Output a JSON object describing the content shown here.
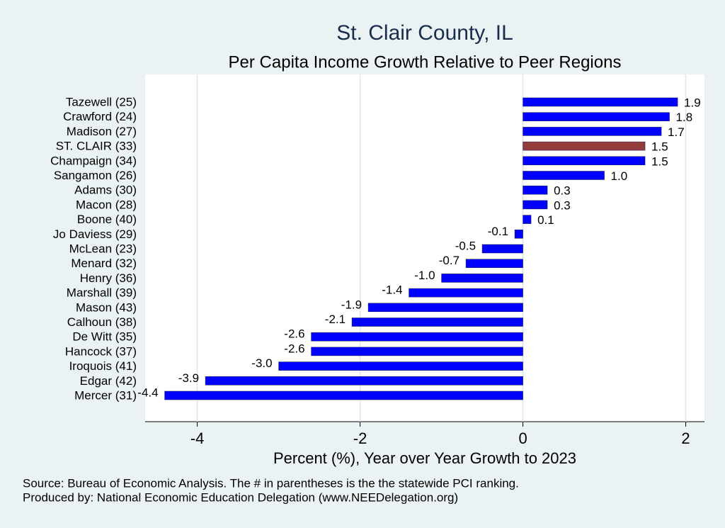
{
  "chart_data": {
    "type": "hbar",
    "title": "St. Clair County, IL",
    "subtitle": "Per Capita Income Growth Relative to Peer Regions",
    "x_label": "Percent (%), Year over Year Growth to 2023",
    "notes": [
      "Source: Bureau of Economic Analysis. The # in parentheses is the the statewide PCI ranking.",
      "Produced by: National Economic Education Delegation (www.NEEDelegation.org)"
    ],
    "categories": [
      "Tazewell (25)",
      "Crawford (24)",
      "Madison (27)",
      "ST. CLAIR (33)",
      "Champaign (34)",
      "Sangamon (26)",
      "Adams (30)",
      "Macon (28)",
      "Boone (40)",
      "Jo Daviess (29)",
      "McLean (23)",
      "Menard (32)",
      "Henry (36)",
      "Marshall (39)",
      "Mason (43)",
      "Calhoun (38)",
      "De Witt (35)",
      "Hancock (37)",
      "Iroquois (41)",
      "Edgar (42)",
      "Mercer (31)"
    ],
    "values": [
      1.9,
      1.8,
      1.7,
      1.5,
      1.5,
      1.0,
      0.3,
      0.3,
      0.1,
      -0.1,
      -0.5,
      -0.7,
      -1.0,
      -1.4,
      -1.9,
      -2.1,
      -2.6,
      -2.6,
      -3.0,
      -3.9,
      -4.4
    ],
    "value_labels": [
      "1.9",
      "1.8",
      "1.7",
      "1.5",
      "1.5",
      "1.0",
      "0.3",
      "0.3",
      "0.1",
      "-0.1",
      "-0.5",
      "-0.7",
      "-1.0",
      "-1.4",
      "-1.9",
      "-2.1",
      "-2.6",
      "-2.6",
      "-3.0",
      "-3.9",
      "-4.4"
    ],
    "colors": [
      "#0000ff",
      "#0000ff",
      "#0000ff",
      "#943c3c",
      "#0000ff",
      "#0000ff",
      "#0000ff",
      "#0000ff",
      "#0000ff",
      "#0000ff",
      "#0000ff",
      "#0000ff",
      "#0000ff",
      "#0000ff",
      "#0000ff",
      "#0000ff",
      "#0000ff",
      "#0000ff",
      "#0000ff",
      "#0000ff",
      "#0000ff"
    ],
    "xlim": [
      -4.64,
      2.23
    ],
    "xticks": [
      -4,
      -2,
      0,
      2
    ],
    "grid": true
  }
}
